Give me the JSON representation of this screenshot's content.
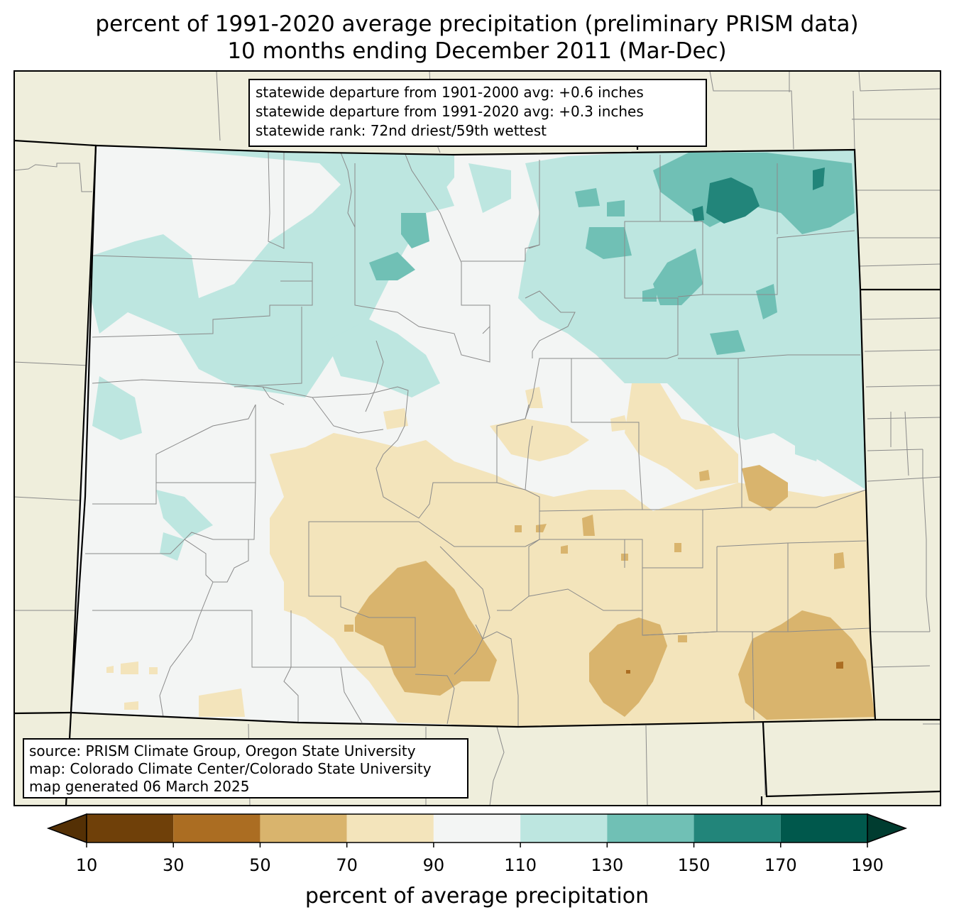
{
  "title": {
    "line1": "percent of 1991-2020 average precipitation (preliminary PRISM data)",
    "line2": "10 months ending December 2011 (Mar-Dec)"
  },
  "stats": {
    "line1": "statewide departure from 1901-2000 avg: +0.6 inches",
    "line2": "statewide departure from 1991-2020 avg: +0.3 inches",
    "line3": "statewide rank: 72nd driest/59th wettest"
  },
  "source": {
    "line1": "source: PRISM Climate Group, Oregon State University",
    "line2": "map: Colorado Climate Center/Colorado State University",
    "line3": "map generated 06 March 2025"
  },
  "colorbar": {
    "title": "percent of average precipitation",
    "ticks": [
      "10",
      "30",
      "50",
      "70",
      "90",
      "110",
      "130",
      "150",
      "170",
      "190"
    ],
    "under_color": "#543005",
    "over_color": "#003c30",
    "bins": [
      {
        "from": 10,
        "to": 30,
        "color": "#6f4009"
      },
      {
        "from": 30,
        "to": 50,
        "color": "#ab6d22"
      },
      {
        "from": 50,
        "to": 70,
        "color": "#d9b46d"
      },
      {
        "from": 70,
        "to": 90,
        "color": "#f3e4bb"
      },
      {
        "from": 90,
        "to": 110,
        "color": "#f3f5f4"
      },
      {
        "from": 110,
        "to": 130,
        "color": "#bde6e0"
      },
      {
        "from": 130,
        "to": 150,
        "color": "#70c0b5"
      },
      {
        "from": 150,
        "to": 170,
        "color": "#22857a"
      },
      {
        "from": 170,
        "to": 190,
        "color": "#00584c"
      }
    ]
  },
  "map_colors": {
    "background": "#efeedc",
    "county_lines": "#8a8a8a",
    "state_lines": "#000000"
  }
}
